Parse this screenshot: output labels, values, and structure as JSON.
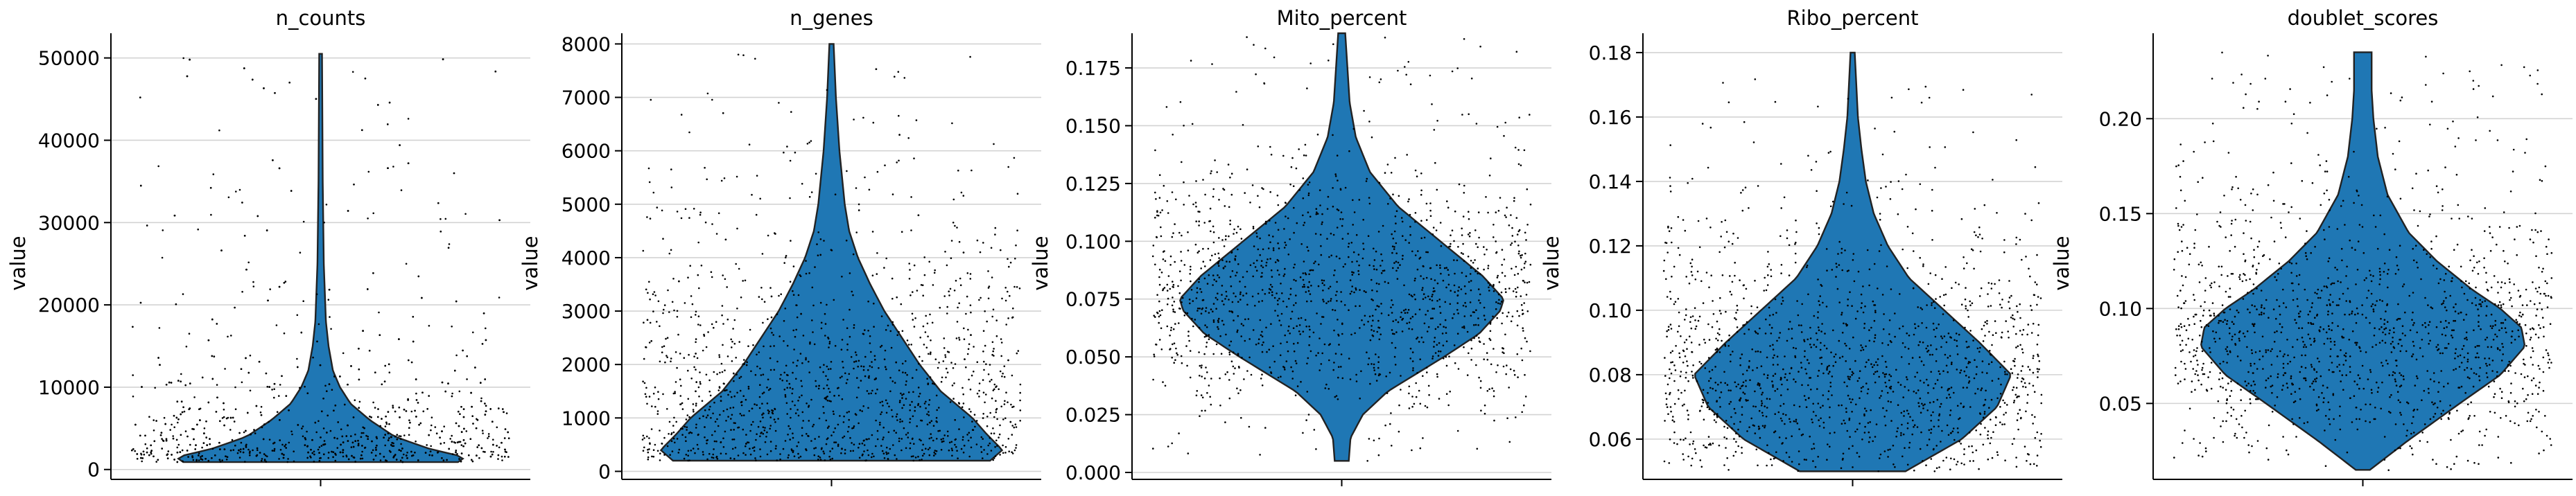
{
  "figure": {
    "background": "#ffffff",
    "violin_color": "#1f77b4",
    "point_color": "#000000",
    "grid_color": "#d3d3d3"
  },
  "chart_data": [
    {
      "type": "violin",
      "title": "n_counts",
      "ylabel": "value",
      "ylim": [
        -1200,
        53000
      ],
      "yticks": [
        0,
        10000,
        20000,
        30000,
        40000,
        50000
      ],
      "ytick_labels": [
        "0",
        "10000",
        "20000",
        "30000",
        "40000",
        "50000"
      ],
      "grid": true,
      "jitter_points": true,
      "distribution": {
        "range": [
          900,
          50500
        ],
        "profile": [
          [
            900,
            0.78
          ],
          [
            1500,
            0.82
          ],
          [
            2500,
            0.62
          ],
          [
            4000,
            0.42
          ],
          [
            6000,
            0.28
          ],
          [
            8000,
            0.17
          ],
          [
            10000,
            0.11
          ],
          [
            12000,
            0.07
          ],
          [
            15000,
            0.045
          ],
          [
            18000,
            0.03
          ],
          [
            25000,
            0.018
          ],
          [
            35000,
            0.012
          ],
          [
            50500,
            0.008
          ]
        ]
      }
    },
    {
      "type": "violin",
      "title": "n_genes",
      "ylabel": "value",
      "ylim": [
        -150,
        8200
      ],
      "yticks": [
        0,
        1000,
        2000,
        3000,
        4000,
        5000,
        6000,
        7000,
        8000
      ],
      "ytick_labels": [
        "0",
        "1000",
        "2000",
        "3000",
        "4000",
        "5000",
        "6000",
        "7000",
        "8000"
      ],
      "grid": true,
      "jitter_points": true,
      "distribution": {
        "range": [
          200,
          8000
        ],
        "profile": [
          [
            200,
            0.9
          ],
          [
            400,
            0.97
          ],
          [
            700,
            0.88
          ],
          [
            1000,
            0.8
          ],
          [
            1500,
            0.62
          ],
          [
            2000,
            0.5
          ],
          [
            2500,
            0.4
          ],
          [
            3000,
            0.3
          ],
          [
            3500,
            0.22
          ],
          [
            4000,
            0.15
          ],
          [
            4500,
            0.1
          ],
          [
            5000,
            0.075
          ],
          [
            6000,
            0.045
          ],
          [
            7000,
            0.025
          ],
          [
            8000,
            0.012
          ]
        ]
      }
    },
    {
      "type": "violin",
      "title": "Mito_percent",
      "ylabel": "value",
      "ylim": [
        -0.003,
        0.19
      ],
      "yticks": [
        0.0,
        0.025,
        0.05,
        0.075,
        0.1,
        0.125,
        0.15,
        0.175
      ],
      "ytick_labels": [
        "0.000",
        "0.025",
        "0.050",
        "0.075",
        "0.100",
        "0.125",
        "0.150",
        "0.175"
      ],
      "grid": true,
      "jitter_points": true,
      "distribution": {
        "range": [
          0.005,
          0.19
        ],
        "profile": [
          [
            0.005,
            0.04
          ],
          [
            0.015,
            0.05
          ],
          [
            0.025,
            0.12
          ],
          [
            0.035,
            0.26
          ],
          [
            0.05,
            0.58
          ],
          [
            0.06,
            0.78
          ],
          [
            0.07,
            0.9
          ],
          [
            0.075,
            0.92
          ],
          [
            0.085,
            0.8
          ],
          [
            0.1,
            0.56
          ],
          [
            0.115,
            0.32
          ],
          [
            0.13,
            0.16
          ],
          [
            0.145,
            0.08
          ],
          [
            0.16,
            0.045
          ],
          [
            0.19,
            0.02
          ]
        ]
      }
    },
    {
      "type": "violin",
      "title": "Ribo_percent",
      "ylabel": "value",
      "ylim": [
        0.0475,
        0.186
      ],
      "yticks": [
        0.06,
        0.08,
        0.1,
        0.12,
        0.14,
        0.16,
        0.18
      ],
      "ytick_labels": [
        "0.06",
        "0.08",
        "0.10",
        "0.12",
        "0.14",
        "0.16",
        "0.18"
      ],
      "grid": true,
      "jitter_points": true,
      "distribution": {
        "range": [
          0.05,
          0.18
        ],
        "profile": [
          [
            0.05,
            0.3
          ],
          [
            0.06,
            0.62
          ],
          [
            0.07,
            0.82
          ],
          [
            0.08,
            0.9
          ],
          [
            0.09,
            0.72
          ],
          [
            0.1,
            0.52
          ],
          [
            0.11,
            0.32
          ],
          [
            0.12,
            0.2
          ],
          [
            0.13,
            0.12
          ],
          [
            0.14,
            0.075
          ],
          [
            0.15,
            0.05
          ],
          [
            0.16,
            0.03
          ],
          [
            0.18,
            0.012
          ]
        ]
      }
    },
    {
      "type": "violin",
      "title": "doublet_scores",
      "ylabel": "value",
      "ylim": [
        0.01,
        0.245
      ],
      "yticks": [
        0.05,
        0.1,
        0.15,
        0.2
      ],
      "ytick_labels": [
        "0.05",
        "0.10",
        "0.15",
        "0.20"
      ],
      "grid": true,
      "jitter_points": true,
      "distribution": {
        "range": [
          0.015,
          0.235
        ],
        "profile": [
          [
            0.015,
            0.04
          ],
          [
            0.03,
            0.25
          ],
          [
            0.05,
            0.55
          ],
          [
            0.065,
            0.78
          ],
          [
            0.08,
            0.92
          ],
          [
            0.09,
            0.9
          ],
          [
            0.1,
            0.78
          ],
          [
            0.11,
            0.62
          ],
          [
            0.125,
            0.42
          ],
          [
            0.14,
            0.26
          ],
          [
            0.16,
            0.14
          ],
          [
            0.18,
            0.085
          ],
          [
            0.2,
            0.06
          ],
          [
            0.215,
            0.05
          ],
          [
            0.235,
            0.05
          ]
        ]
      }
    }
  ]
}
